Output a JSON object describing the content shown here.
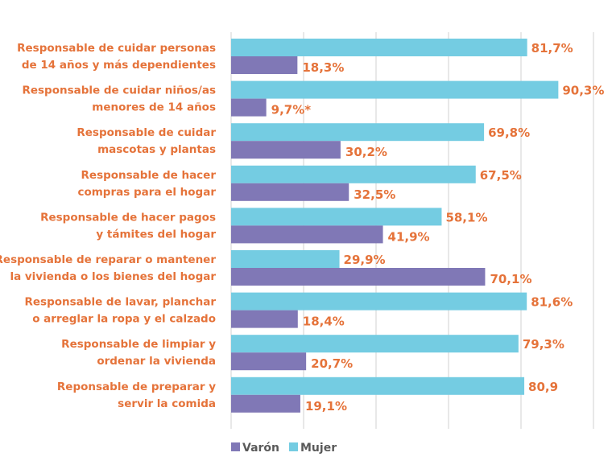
{
  "chart_data": {
    "type": "bar",
    "orientation": "horizontal",
    "categories": [
      [
        "Responsable de cuidar personas",
        "de 14 años y más dependientes"
      ],
      [
        "Responsable de cuidar niños/as",
        "menores de 14 años"
      ],
      [
        "Responsable de cuidar",
        "mascotas y plantas"
      ],
      [
        "Responsable de hacer",
        "compras para el hogar"
      ],
      [
        "Responsable de hacer pagos",
        "y támites del hogar"
      ],
      [
        "Responsable de reparar o mantener",
        "la vivienda o los bienes del hogar"
      ],
      [
        "Responsable de lavar, planchar",
        "o arreglar la ropa y el calzado"
      ],
      [
        "Responsable de limpiar y",
        "ordenar la vivienda"
      ],
      [
        "Reponsable de preparar y",
        "servir la comida"
      ]
    ],
    "series": [
      {
        "name": "Mujer",
        "color": "#74cce2",
        "values": [
          81.7,
          90.3,
          69.8,
          67.5,
          58.1,
          29.9,
          81.6,
          79.3,
          80.9
        ],
        "labels": [
          "81,7%",
          "90,3%",
          "69,8%",
          "67,5%",
          "58,1%",
          "29,9%",
          "81,6%",
          "79,3%",
          "80,9"
        ]
      },
      {
        "name": "Varón",
        "color": "#8078b6",
        "values": [
          18.3,
          9.7,
          30.2,
          32.5,
          41.9,
          70.1,
          18.4,
          20.7,
          19.1
        ],
        "labels": [
          "18,3%",
          "9,7%*",
          "30,2%",
          "32,5%",
          "41,9%",
          "70,1%",
          "18,4%",
          "20,7%",
          "19,1%"
        ]
      }
    ],
    "xlim": [
      0,
      100
    ],
    "grid": true,
    "gridlines": [
      0,
      20,
      40,
      60,
      80,
      100
    ],
    "legend_position": "bottom-left",
    "label_color": "#e5733a"
  }
}
